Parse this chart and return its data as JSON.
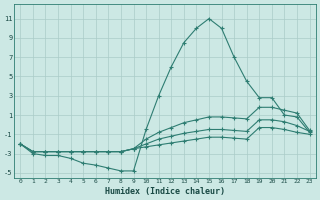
{
  "x": [
    0,
    1,
    2,
    3,
    4,
    5,
    6,
    7,
    8,
    9,
    10,
    11,
    12,
    13,
    14,
    15,
    16,
    17,
    18,
    19,
    20,
    21,
    22,
    23
  ],
  "line1": [
    -2,
    -3,
    -3.2,
    -3.2,
    -3.5,
    -4.0,
    -4.2,
    -4.5,
    -4.8,
    -4.8,
    -0.5,
    3.0,
    6.0,
    8.5,
    10.0,
    11.0,
    10.0,
    7.0,
    4.5,
    2.8,
    2.8,
    1.0,
    0.8,
    -0.8
  ],
  "line2": [
    -2,
    -2.8,
    -2.8,
    -2.8,
    -2.8,
    -2.8,
    -2.8,
    -2.8,
    -2.8,
    -2.5,
    -1.5,
    -0.8,
    -0.3,
    0.2,
    0.5,
    0.8,
    0.8,
    0.7,
    0.6,
    1.8,
    1.8,
    1.5,
    1.2,
    -0.6
  ],
  "line3": [
    -2,
    -2.8,
    -2.8,
    -2.8,
    -2.8,
    -2.8,
    -2.8,
    -2.8,
    -2.8,
    -2.5,
    -2.0,
    -1.5,
    -1.2,
    -0.9,
    -0.7,
    -0.5,
    -0.5,
    -0.6,
    -0.7,
    0.5,
    0.5,
    0.3,
    -0.1,
    -0.7
  ],
  "line4": [
    -2,
    -2.8,
    -2.8,
    -2.8,
    -2.8,
    -2.8,
    -2.8,
    -2.8,
    -2.8,
    -2.5,
    -2.3,
    -2.1,
    -1.9,
    -1.7,
    -1.5,
    -1.3,
    -1.3,
    -1.4,
    -1.5,
    -0.3,
    -0.3,
    -0.5,
    -0.8,
    -1.0
  ],
  "line_color": "#2e7d72",
  "bg_color": "#cce8e4",
  "grid_color": "#aaccc8",
  "xlabel": "Humidex (Indice chaleur)",
  "ylim": [
    -5.5,
    12.5
  ],
  "xlim": [
    -0.5,
    23.5
  ],
  "yticks": [
    -5,
    -3,
    -1,
    1,
    3,
    5,
    7,
    9,
    11
  ],
  "xticks": [
    0,
    1,
    2,
    3,
    4,
    5,
    6,
    7,
    8,
    9,
    10,
    11,
    12,
    13,
    14,
    15,
    16,
    17,
    18,
    19,
    20,
    21,
    22,
    23
  ]
}
